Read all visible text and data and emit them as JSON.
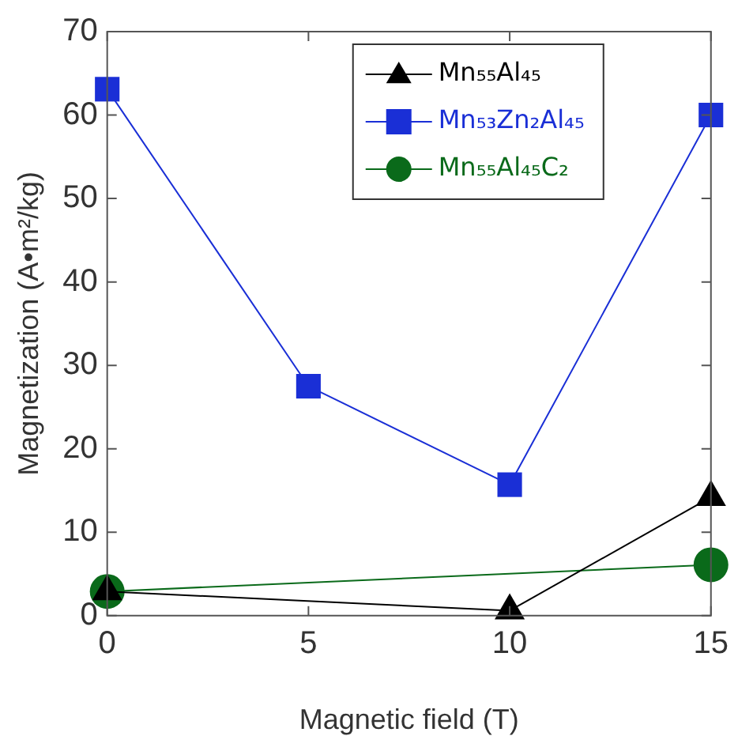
{
  "chart_data": {
    "type": "line",
    "xlabel": "Magnetic field (T)",
    "ylabel": "Magnetization (A•m²/kg)",
    "x": [
      0,
      5,
      10,
      15
    ],
    "xlim": [
      0,
      15
    ],
    "xticks": [
      0,
      5,
      10,
      15
    ],
    "ylim": [
      0,
      70
    ],
    "yticks": [
      0,
      10,
      20,
      30,
      40,
      50,
      60,
      70
    ],
    "grid": false,
    "legend": "top right",
    "series": [
      {
        "name": "Mn₅₅Al₄₅",
        "color": "#000000",
        "marker": "triangle",
        "values": [
          2.9,
          null,
          0.6,
          14.2
        ]
      },
      {
        "name": "Mn₅₃Zn₂Al₄₅",
        "color": "#1a2fd6",
        "marker": "square",
        "values": [
          63.1,
          27.5,
          15.7,
          60.0
        ]
      },
      {
        "name": "Mn₅₅Al₄₅C₂",
        "color": "#0a6a1a",
        "marker": "circle",
        "values": [
          2.9,
          null,
          null,
          6.1
        ]
      }
    ]
  }
}
